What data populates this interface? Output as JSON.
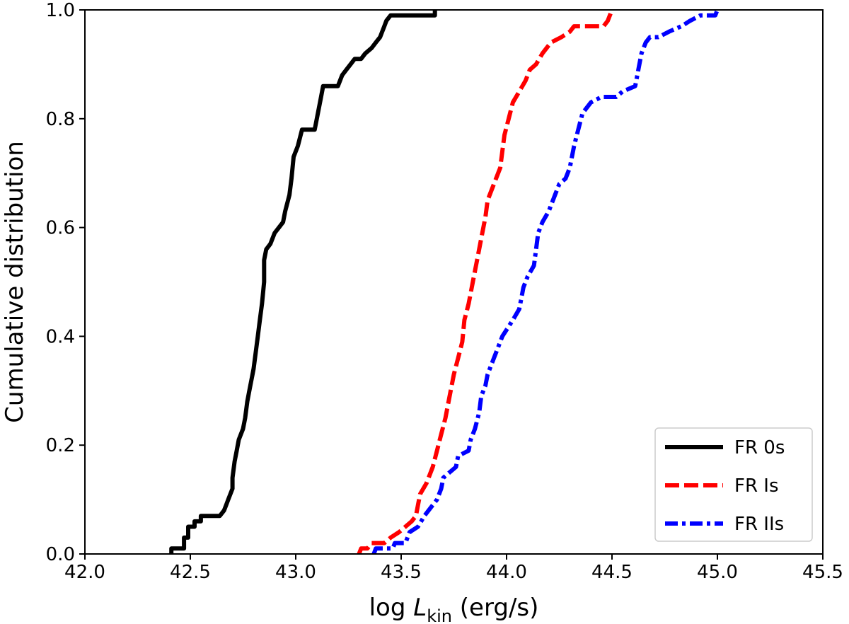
{
  "chart_data": {
    "type": "line",
    "title": "",
    "xlabel": "log L_kin (erg/s)",
    "xlabel_parts": {
      "prefix": "log ",
      "symbol": "L",
      "subscript": "kin",
      "suffix": " (erg/s)"
    },
    "ylabel": "Cumulative distribution",
    "xlim": [
      42.0,
      45.5
    ],
    "ylim": [
      0.0,
      1.0
    ],
    "xticks": [
      42.0,
      42.5,
      43.0,
      43.5,
      44.0,
      44.5,
      45.0,
      45.5
    ],
    "xtick_labels": [
      "42.0",
      "42.5",
      "43.0",
      "43.5",
      "44.0",
      "44.5",
      "45.0",
      "45.5"
    ],
    "yticks": [
      0.0,
      0.2,
      0.4,
      0.6,
      0.8,
      1.0
    ],
    "ytick_labels": [
      "0.0",
      "0.2",
      "0.4",
      "0.6",
      "0.8",
      "1.0"
    ],
    "grid": false,
    "legend_position": "bottom-right",
    "series": [
      {
        "name": "FR 0s",
        "color": "#000000",
        "dash": "solid",
        "points": [
          [
            42.41,
            0.0
          ],
          [
            42.41,
            0.01
          ],
          [
            42.47,
            0.01
          ],
          [
            42.47,
            0.03
          ],
          [
            42.49,
            0.03
          ],
          [
            42.49,
            0.05
          ],
          [
            42.52,
            0.05
          ],
          [
            42.52,
            0.06
          ],
          [
            42.55,
            0.06
          ],
          [
            42.55,
            0.07
          ],
          [
            42.64,
            0.07
          ],
          [
            42.66,
            0.08
          ],
          [
            42.67,
            0.09
          ],
          [
            42.68,
            0.1
          ],
          [
            42.7,
            0.12
          ],
          [
            42.7,
            0.14
          ],
          [
            42.71,
            0.17
          ],
          [
            42.72,
            0.19
          ],
          [
            42.73,
            0.21
          ],
          [
            42.75,
            0.23
          ],
          [
            42.76,
            0.25
          ],
          [
            42.77,
            0.28
          ],
          [
            42.78,
            0.3
          ],
          [
            42.79,
            0.32
          ],
          [
            42.8,
            0.34
          ],
          [
            42.81,
            0.37
          ],
          [
            42.82,
            0.4
          ],
          [
            42.83,
            0.43
          ],
          [
            42.84,
            0.46
          ],
          [
            42.85,
            0.5
          ],
          [
            42.85,
            0.54
          ],
          [
            42.86,
            0.56
          ],
          [
            42.88,
            0.57
          ],
          [
            42.9,
            0.59
          ],
          [
            42.92,
            0.6
          ],
          [
            42.94,
            0.61
          ],
          [
            42.95,
            0.63
          ],
          [
            42.97,
            0.66
          ],
          [
            42.98,
            0.69
          ],
          [
            42.99,
            0.73
          ],
          [
            43.01,
            0.75
          ],
          [
            43.03,
            0.78
          ],
          [
            43.09,
            0.78
          ],
          [
            43.1,
            0.8
          ],
          [
            43.11,
            0.82
          ],
          [
            43.12,
            0.84
          ],
          [
            43.13,
            0.86
          ],
          [
            43.2,
            0.86
          ],
          [
            43.21,
            0.87
          ],
          [
            43.22,
            0.88
          ],
          [
            43.24,
            0.89
          ],
          [
            43.26,
            0.9
          ],
          [
            43.28,
            0.91
          ],
          [
            43.31,
            0.91
          ],
          [
            43.33,
            0.92
          ],
          [
            43.36,
            0.93
          ],
          [
            43.38,
            0.94
          ],
          [
            43.4,
            0.95
          ],
          [
            43.41,
            0.96
          ],
          [
            43.42,
            0.97
          ],
          [
            43.43,
            0.98
          ],
          [
            43.45,
            0.99
          ],
          [
            43.66,
            0.99
          ],
          [
            43.66,
            1.0
          ]
        ]
      },
      {
        "name": "FR Is",
        "color": "#ff0000",
        "dash": "dashed",
        "points": [
          [
            43.3,
            0.0
          ],
          [
            43.31,
            0.01
          ],
          [
            43.34,
            0.01
          ],
          [
            43.36,
            0.02
          ],
          [
            43.42,
            0.02
          ],
          [
            43.45,
            0.03
          ],
          [
            43.49,
            0.04
          ],
          [
            43.52,
            0.05
          ],
          [
            43.55,
            0.06
          ],
          [
            43.57,
            0.07
          ],
          [
            43.58,
            0.09
          ],
          [
            43.59,
            0.11
          ],
          [
            43.62,
            0.13
          ],
          [
            43.65,
            0.16
          ],
          [
            43.67,
            0.19
          ],
          [
            43.69,
            0.22
          ],
          [
            43.71,
            0.25
          ],
          [
            43.73,
            0.29
          ],
          [
            43.75,
            0.33
          ],
          [
            43.77,
            0.36
          ],
          [
            43.79,
            0.39
          ],
          [
            43.8,
            0.43
          ],
          [
            43.82,
            0.46
          ],
          [
            43.84,
            0.5
          ],
          [
            43.86,
            0.54
          ],
          [
            43.88,
            0.58
          ],
          [
            43.9,
            0.62
          ],
          [
            43.91,
            0.65
          ],
          [
            43.94,
            0.68
          ],
          [
            43.97,
            0.71
          ],
          [
            43.98,
            0.74
          ],
          [
            43.99,
            0.77
          ],
          [
            44.01,
            0.8
          ],
          [
            44.03,
            0.83
          ],
          [
            44.06,
            0.85
          ],
          [
            44.09,
            0.87
          ],
          [
            44.11,
            0.89
          ],
          [
            44.14,
            0.9
          ],
          [
            44.17,
            0.92
          ],
          [
            44.21,
            0.94
          ],
          [
            44.26,
            0.95
          ],
          [
            44.3,
            0.96
          ],
          [
            44.32,
            0.97
          ],
          [
            44.38,
            0.97
          ],
          [
            44.4,
            0.97
          ],
          [
            44.46,
            0.97
          ],
          [
            44.48,
            0.98
          ],
          [
            44.49,
            0.99
          ],
          [
            44.5,
            1.0
          ]
        ]
      },
      {
        "name": "FR IIs",
        "color": "#0000ff",
        "dash": "dashdot",
        "points": [
          [
            43.37,
            0.0
          ],
          [
            43.38,
            0.01
          ],
          [
            43.46,
            0.01
          ],
          [
            43.47,
            0.02
          ],
          [
            43.52,
            0.02
          ],
          [
            43.54,
            0.04
          ],
          [
            43.58,
            0.05
          ],
          [
            43.61,
            0.07
          ],
          [
            43.65,
            0.09
          ],
          [
            43.67,
            0.1
          ],
          [
            43.69,
            0.12
          ],
          [
            43.7,
            0.14
          ],
          [
            43.73,
            0.15
          ],
          [
            43.76,
            0.16
          ],
          [
            43.77,
            0.18
          ],
          [
            43.82,
            0.19
          ],
          [
            43.83,
            0.21
          ],
          [
            43.85,
            0.23
          ],
          [
            43.87,
            0.26
          ],
          [
            43.88,
            0.29
          ],
          [
            43.9,
            0.31
          ],
          [
            43.91,
            0.33
          ],
          [
            43.94,
            0.36
          ],
          [
            43.96,
            0.38
          ],
          [
            43.98,
            0.4
          ],
          [
            44.03,
            0.43
          ],
          [
            44.06,
            0.45
          ],
          [
            44.07,
            0.47
          ],
          [
            44.08,
            0.49
          ],
          [
            44.1,
            0.51
          ],
          [
            44.13,
            0.53
          ],
          [
            44.14,
            0.56
          ],
          [
            44.15,
            0.59
          ],
          [
            44.17,
            0.61
          ],
          [
            44.2,
            0.63
          ],
          [
            44.23,
            0.66
          ],
          [
            44.25,
            0.68
          ],
          [
            44.28,
            0.69
          ],
          [
            44.3,
            0.71
          ],
          [
            44.31,
            0.73
          ],
          [
            44.32,
            0.75
          ],
          [
            44.34,
            0.78
          ],
          [
            44.36,
            0.81
          ],
          [
            44.4,
            0.83
          ],
          [
            44.45,
            0.84
          ],
          [
            44.52,
            0.84
          ],
          [
            44.55,
            0.85
          ],
          [
            44.61,
            0.86
          ],
          [
            44.62,
            0.88
          ],
          [
            44.63,
            0.9
          ],
          [
            44.64,
            0.92
          ],
          [
            44.66,
            0.94
          ],
          [
            44.68,
            0.95
          ],
          [
            44.72,
            0.95
          ],
          [
            44.77,
            0.96
          ],
          [
            44.83,
            0.97
          ],
          [
            44.87,
            0.98
          ],
          [
            44.92,
            0.99
          ],
          [
            44.99,
            0.99
          ],
          [
            45.0,
            1.0
          ]
        ]
      }
    ]
  }
}
